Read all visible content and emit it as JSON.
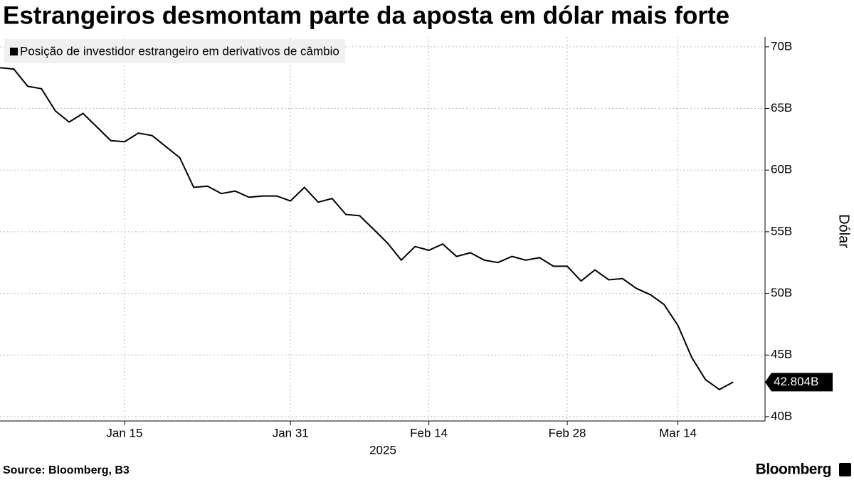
{
  "chart_data": {
    "type": "line",
    "title": "Estrangeiros desmontam parte da aposta em dólar mais forte",
    "y_axis_label": "Dólar",
    "x_axis_label": "2025",
    "source": "Source: Bloomberg, B3",
    "brand": "Bloomberg",
    "x": [
      "2025-01-02",
      "2025-01-03",
      "2025-01-06",
      "2025-01-07",
      "2025-01-08",
      "2025-01-09",
      "2025-01-10",
      "2025-01-13",
      "2025-01-14",
      "2025-01-15",
      "2025-01-16",
      "2025-01-17",
      "2025-01-20",
      "2025-01-21",
      "2025-01-22",
      "2025-01-23",
      "2025-01-24",
      "2025-01-27",
      "2025-01-28",
      "2025-01-29",
      "2025-01-30",
      "2025-01-31",
      "2025-02-03",
      "2025-02-04",
      "2025-02-05",
      "2025-02-06",
      "2025-02-07",
      "2025-02-10",
      "2025-02-11",
      "2025-02-12",
      "2025-02-13",
      "2025-02-14",
      "2025-02-17",
      "2025-02-18",
      "2025-02-19",
      "2025-02-20",
      "2025-02-21",
      "2025-02-24",
      "2025-02-25",
      "2025-02-26",
      "2025-02-27",
      "2025-02-28",
      "2025-03-05",
      "2025-03-06",
      "2025-03-07",
      "2025-03-10",
      "2025-03-11",
      "2025-03-12",
      "2025-03-13",
      "2025-03-14",
      "2025-03-17",
      "2025-03-18",
      "2025-03-19",
      "2025-03-20"
    ],
    "series": [
      {
        "name": "Posição de investidor estrangeiro em derivativos de câmbio",
        "color": "#000000",
        "values": [
          68.3,
          68.2,
          66.8,
          66.6,
          64.8,
          63.9,
          64.6,
          63.5,
          62.4,
          62.3,
          63.0,
          62.8,
          61.9,
          61.0,
          58.6,
          58.7,
          58.1,
          58.3,
          57.8,
          57.9,
          57.9,
          57.5,
          58.6,
          57.4,
          57.7,
          56.4,
          56.3,
          55.2,
          54.1,
          52.7,
          53.8,
          53.5,
          54.0,
          53.0,
          53.3,
          52.7,
          52.5,
          53.0,
          52.7,
          52.9,
          52.2,
          52.2,
          51.0,
          51.9,
          51.1,
          51.2,
          50.4,
          49.9,
          49.1,
          47.4,
          44.8,
          43.0,
          42.2,
          42.804
        ],
        "value_labels": [
          null,
          null,
          null,
          null,
          null,
          null,
          null,
          null,
          null,
          null,
          null,
          null,
          null,
          null,
          null,
          null,
          null,
          null,
          null,
          null,
          null,
          null,
          null,
          null,
          null,
          null,
          null,
          null,
          null,
          null,
          null,
          null,
          null,
          null,
          null,
          null,
          null,
          null,
          null,
          null,
          null,
          null,
          null,
          null,
          null,
          null,
          null,
          null,
          null,
          null,
          null,
          null,
          null,
          "42.804B"
        ]
      }
    ],
    "xticks": [
      {
        "value": "2025-01-15",
        "label": "Jan 15"
      },
      {
        "value": "2025-01-31",
        "label": "Jan 31"
      },
      {
        "value": "2025-02-14",
        "label": "Feb 14"
      },
      {
        "value": "2025-02-28",
        "label": "Feb 28"
      },
      {
        "value": "2025-03-14",
        "label": "Mar 14"
      }
    ],
    "ylim": [
      39.65,
      70.8
    ],
    "yticks": [
      {
        "value": 40,
        "label": "40B"
      },
      {
        "value": 45,
        "label": "45B"
      },
      {
        "value": 50,
        "label": "50B"
      },
      {
        "value": 55,
        "label": "55B"
      },
      {
        "value": 60,
        "label": "60B"
      },
      {
        "value": 65,
        "label": "65B"
      },
      {
        "value": 70,
        "label": "70B"
      }
    ],
    "grid": true,
    "legend": "top-left"
  }
}
